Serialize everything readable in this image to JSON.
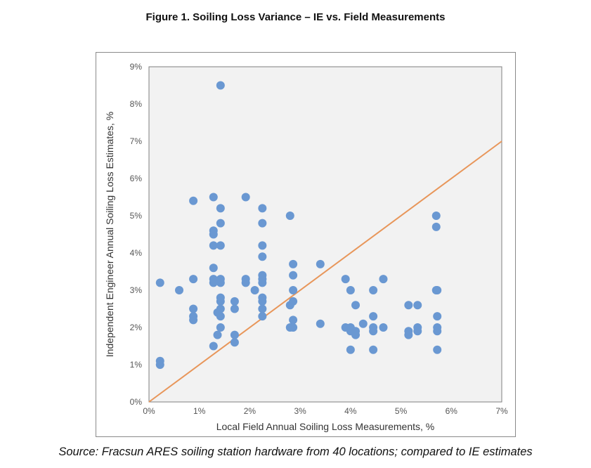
{
  "figure": {
    "title": "Figure 1. Soiling Loss Variance – IE vs. Field Measurements",
    "caption": "Source: Fracsun ARES soiling station hardware from 40 locations; compared to IE estimates"
  },
  "chart_data": {
    "type": "scatter",
    "title": "Figure 1. Soiling Loss Variance – IE vs. Field Measurements",
    "xlabel": "Local Field Annual Soiling Loss Measurements, %",
    "ylabel": "Independent Engineer Annual Soiling Loss Estimates, %",
    "xlim": [
      0,
      7
    ],
    "ylim": [
      0,
      9
    ],
    "x_tick_labels": [
      "0%",
      "1%",
      "2%",
      "3%",
      "4%",
      "5%",
      "6%",
      "7%"
    ],
    "y_tick_labels": [
      "0%",
      "1%",
      "2%",
      "3%",
      "4%",
      "5%",
      "6%",
      "7%",
      "8%",
      "9%"
    ],
    "grid": false,
    "point_color": "#6a98d2",
    "line_color": "#e8965a",
    "series": [
      {
        "name": "Locations",
        "points": [
          [
            0.22,
            3.2
          ],
          [
            0.22,
            1.1
          ],
          [
            0.22,
            1.0
          ],
          [
            0.6,
            3.0
          ],
          [
            0.88,
            5.4
          ],
          [
            0.88,
            3.3
          ],
          [
            0.88,
            2.5
          ],
          [
            0.88,
            2.3
          ],
          [
            0.88,
            2.2
          ],
          [
            1.28,
            5.5
          ],
          [
            1.28,
            4.6
          ],
          [
            1.28,
            4.5
          ],
          [
            1.28,
            4.2
          ],
          [
            1.28,
            3.6
          ],
          [
            1.28,
            3.3
          ],
          [
            1.28,
            3.2
          ],
          [
            1.28,
            1.5
          ],
          [
            1.42,
            8.5
          ],
          [
            1.42,
            5.2
          ],
          [
            1.42,
            4.8
          ],
          [
            1.42,
            4.2
          ],
          [
            1.42,
            3.3
          ],
          [
            1.42,
            3.2
          ],
          [
            1.42,
            2.8
          ],
          [
            1.42,
            2.7
          ],
          [
            1.42,
            2.5
          ],
          [
            1.42,
            2.3
          ],
          [
            1.42,
            2.0
          ],
          [
            1.36,
            2.4
          ],
          [
            1.36,
            1.8
          ],
          [
            1.7,
            2.7
          ],
          [
            1.7,
            2.5
          ],
          [
            1.7,
            1.8
          ],
          [
            1.7,
            1.6
          ],
          [
            1.92,
            5.5
          ],
          [
            1.92,
            3.3
          ],
          [
            1.92,
            3.2
          ],
          [
            2.1,
            3.0
          ],
          [
            2.25,
            5.2
          ],
          [
            2.25,
            4.8
          ],
          [
            2.25,
            4.2
          ],
          [
            2.25,
            3.9
          ],
          [
            2.25,
            3.4
          ],
          [
            2.25,
            3.3
          ],
          [
            2.25,
            3.2
          ],
          [
            2.25,
            2.8
          ],
          [
            2.25,
            2.7
          ],
          [
            2.25,
            2.5
          ],
          [
            2.25,
            2.3
          ],
          [
            2.8,
            5.0
          ],
          [
            2.8,
            2.6
          ],
          [
            2.8,
            2.0
          ],
          [
            2.86,
            3.7
          ],
          [
            2.86,
            3.4
          ],
          [
            2.86,
            3.0
          ],
          [
            2.86,
            2.7
          ],
          [
            2.86,
            2.2
          ],
          [
            2.86,
            2.0
          ],
          [
            3.4,
            3.7
          ],
          [
            3.4,
            2.1
          ],
          [
            3.9,
            3.3
          ],
          [
            3.9,
            2.0
          ],
          [
            4.0,
            3.0
          ],
          [
            4.0,
            2.0
          ],
          [
            4.0,
            1.9
          ],
          [
            4.0,
            1.4
          ],
          [
            4.1,
            2.6
          ],
          [
            4.1,
            1.9
          ],
          [
            4.1,
            1.8
          ],
          [
            4.25,
            2.1
          ],
          [
            4.45,
            3.0
          ],
          [
            4.45,
            2.3
          ],
          [
            4.45,
            2.0
          ],
          [
            4.45,
            1.9
          ],
          [
            4.45,
            1.4
          ],
          [
            4.65,
            3.3
          ],
          [
            4.65,
            2.0
          ],
          [
            5.15,
            2.6
          ],
          [
            5.15,
            1.9
          ],
          [
            5.15,
            1.8
          ],
          [
            5.33,
            2.6
          ],
          [
            5.33,
            2.0
          ],
          [
            5.33,
            1.9
          ],
          [
            5.7,
            5.0
          ],
          [
            5.7,
            4.7
          ],
          [
            5.7,
            3.0
          ],
          [
            5.72,
            3.0
          ],
          [
            5.72,
            2.3
          ],
          [
            5.72,
            2.0
          ],
          [
            5.72,
            1.9
          ],
          [
            5.72,
            1.4
          ]
        ]
      }
    ],
    "reference_line": {
      "name": "1:1 line",
      "from": [
        0,
        0
      ],
      "to": [
        7,
        7
      ]
    }
  }
}
